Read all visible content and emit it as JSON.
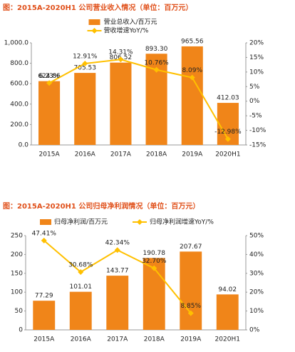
{
  "chart_data": [
    {
      "type": "combo",
      "title": "图：2015A-2020H1 公司营业收入情况（单位：百万元）",
      "categories": [
        "2015A",
        "2016A",
        "2017A",
        "2018A",
        "2019A",
        "2020H1"
      ],
      "series": [
        {
          "name": "营业总收入/百万元",
          "type": "bar",
          "color": "#f08519",
          "values": [
            624.86,
            705.53,
            806.52,
            893.3,
            965.56,
            412.03
          ],
          "value_labels": [
            "624.86",
            "705.53",
            "806.52",
            "893.30",
            "965.56",
            "412.03"
          ]
        },
        {
          "name": "营收增速YoY/%",
          "type": "line",
          "axis": "y2",
          "color": "#ffc000",
          "values": [
            6.23,
            12.91,
            14.31,
            10.76,
            8.09,
            -12.98
          ],
          "value_labels": [
            "6.23%",
            "12.91%",
            "14.31%",
            "10.76%",
            "8.09%",
            "-12.98%"
          ]
        }
      ],
      "ylim": [
        0,
        1000
      ],
      "yticks": [
        {
          "value": 0,
          "label": "0.0"
        },
        {
          "value": 200,
          "label": "200.0"
        },
        {
          "value": 400,
          "label": "400.0"
        },
        {
          "value": 600,
          "label": "600.0"
        },
        {
          "value": 800,
          "label": "800.0"
        },
        {
          "value": 1000,
          "label": "1,000.0"
        }
      ],
      "y2lim": [
        -15,
        20
      ],
      "y2ticks": [
        {
          "value": -15,
          "label": "-15%"
        },
        {
          "value": -10,
          "label": "-10%"
        },
        {
          "value": -5,
          "label": "-5%"
        },
        {
          "value": 0,
          "label": "0%"
        },
        {
          "value": 5,
          "label": "5%"
        },
        {
          "value": 10,
          "label": "10%"
        },
        {
          "value": 15,
          "label": "15%"
        },
        {
          "value": 20,
          "label": "20%"
        }
      ]
    },
    {
      "type": "combo",
      "title": "图：2015A-2020H1 公司归母净利润情况（单位：百万元）",
      "categories": [
        "2015A",
        "2016A",
        "2017A",
        "2018A",
        "2019A",
        "2020H1"
      ],
      "series": [
        {
          "name": "归母净利润/百万元",
          "type": "bar",
          "color": "#f08519",
          "values": [
            77.29,
            101.01,
            143.77,
            190.78,
            207.67,
            94.02
          ]
        },
        {
          "name": "归母净利润增速YoY/%",
          "type": "line",
          "axis": "y2",
          "color": "#ffc000",
          "values": [
            47.41,
            30.68,
            42.34,
            32.7,
            8.85,
            null
          ],
          "value_labels": [
            "47.41%",
            "30.68%",
            "42.34%",
            "32.70%",
            "8.85%",
            null
          ]
        }
      ],
      "ylim": [
        0,
        250
      ],
      "yticks": [
        0,
        50,
        100,
        150,
        200,
        250
      ],
      "y2lim": [
        0,
        50
      ],
      "y2ticks": [
        {
          "value": 0,
          "label": "0%"
        },
        {
          "value": 10,
          "label": "10%"
        },
        {
          "value": 20,
          "label": "20%"
        },
        {
          "value": 30,
          "label": "30%"
        },
        {
          "value": 40,
          "label": "40%"
        },
        {
          "value": 50,
          "label": "50%"
        }
      ]
    }
  ]
}
